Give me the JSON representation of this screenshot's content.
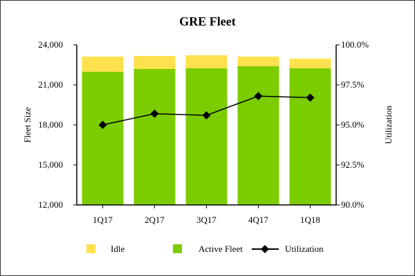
{
  "chart_data": {
    "type": "bar",
    "subtype": "stacked bar with line (dual axis)",
    "title": "GRE Fleet",
    "xlabel": "",
    "ylabel": "Fleet Size",
    "ylabel_right": "Utilization",
    "categories": [
      "1Q17",
      "2Q17",
      "3Q17",
      "4Q17",
      "1Q18"
    ],
    "ylim": [
      12000,
      24000
    ],
    "yticks": [
      12000,
      15000,
      18000,
      21000,
      24000
    ],
    "ytick_labels": [
      "12,000",
      "15,000",
      "18,000",
      "21,000",
      "24,000"
    ],
    "ylim_right": [
      90.0,
      100.0
    ],
    "yticks_right": [
      90.0,
      92.5,
      95.0,
      97.5,
      100.0
    ],
    "ytick_labels_right": [
      "90.0%",
      "92.5%",
      "95.0%",
      "97.5%",
      "100.0%"
    ],
    "series": [
      {
        "name": "Active Fleet",
        "type": "bar",
        "axis": "left",
        "color": "#7ccd00",
        "values": [
          21980,
          22190,
          22240,
          22400,
          22240
        ]
      },
      {
        "name": "Idle",
        "type": "bar",
        "axis": "left",
        "stacked_on": "Active Fleet",
        "color": "#ffe14d",
        "values": [
          1140,
          980,
          980,
          720,
          730
        ]
      },
      {
        "name": "Utilization",
        "type": "line",
        "axis": "right",
        "marker": "diamond",
        "color": "#000000",
        "values": [
          95.0,
          95.7,
          95.6,
          96.8,
          96.7
        ]
      }
    ],
    "legend": {
      "position": "bottom",
      "entries": [
        {
          "label": "Idle",
          "kind": "swatch",
          "color": "#ffe14d"
        },
        {
          "label": "Active Fleet",
          "kind": "swatch",
          "color": "#7ccd00"
        },
        {
          "label": "Utilization",
          "kind": "line-diamond",
          "color": "#000000"
        }
      ]
    },
    "grid": false
  }
}
